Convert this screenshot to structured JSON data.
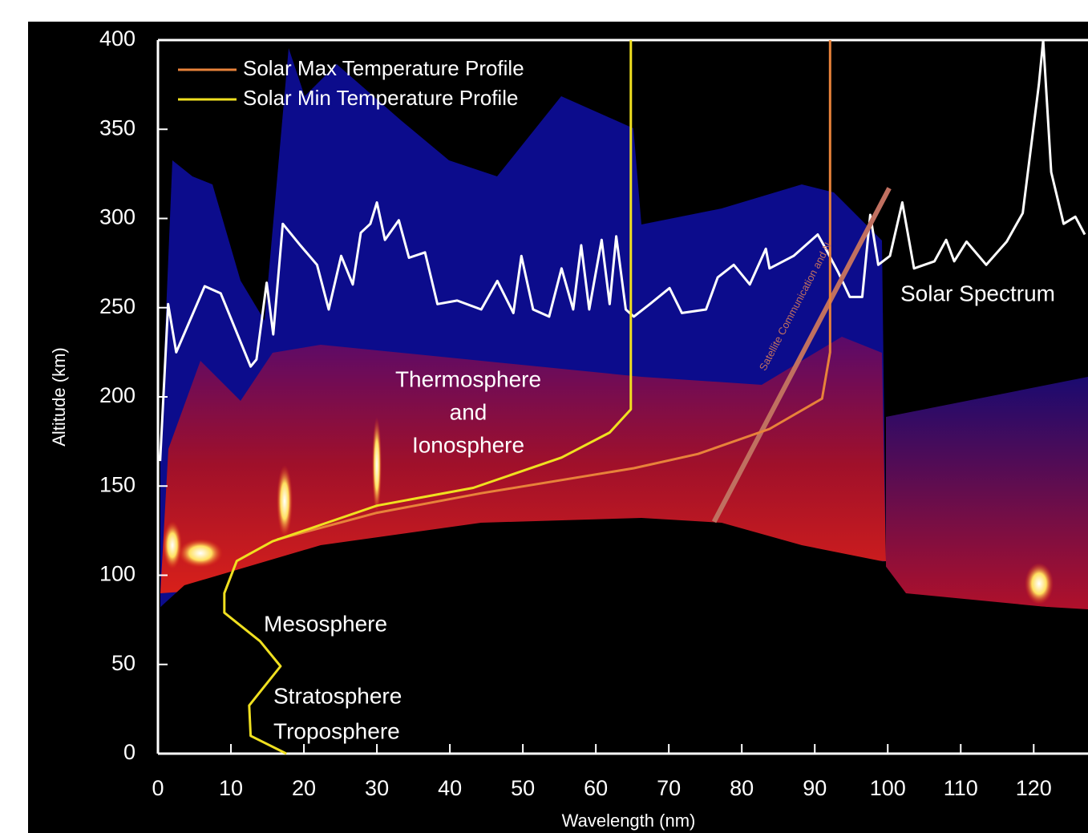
{
  "chart_data": {
    "type": "line",
    "x_label": "Wavelength (nm)",
    "y_label": "Altitude (km)",
    "xlim": [
      0,
      127
    ],
    "ylim": [
      0,
      400
    ],
    "xticks": [
      0,
      10,
      20,
      30,
      40,
      50,
      60,
      70,
      80,
      90,
      100,
      110,
      120
    ],
    "yticks": [
      0,
      50,
      100,
      150,
      200,
      250,
      300,
      350,
      400
    ],
    "legend": "top-left",
    "series": [
      {
        "name": "Solar Max Temperature Profile",
        "color": "#e8823a",
        "x": [
          16.3,
          30,
          44.3,
          65.2,
          74,
          83.8,
          91,
          92.1,
          92.1
        ],
        "values": [
          120,
          135,
          146,
          160,
          168,
          182,
          199,
          225,
          400
        ]
      },
      {
        "name": "Solar Min Temperature Profile",
        "color": "#f0e020",
        "x": [
          17.6,
          12.7,
          12.5,
          16.8,
          14,
          9.1,
          9.1,
          10.8,
          15.7,
          30,
          43.2,
          55.3,
          61.9,
          64.8,
          64.8,
          64.8
        ],
        "values": [
          0,
          10,
          27,
          49,
          63,
          79,
          90,
          108,
          119,
          139,
          149,
          166,
          180,
          193,
          199,
          400
        ]
      }
    ],
    "spectrum": {
      "label": "Solar Spectrum",
      "color": "#ffffff",
      "x": [
        0.3,
        1.4,
        2.5,
        6.4,
        8.6,
        12.7,
        13.5,
        14.9,
        15.8,
        17.1,
        19.5,
        21.8,
        23.4,
        25.1,
        26.7,
        27.8,
        29.1,
        30,
        31.1,
        33,
        34.4,
        36.6,
        38.3,
        41,
        44.3,
        46.5,
        48.7,
        49.8,
        51.4,
        53.6,
        55.3,
        56.9,
        58,
        59.1,
        60.8,
        61.9,
        62.8,
        64.1,
        65.2,
        67.4,
        70.1,
        71.8,
        75.1,
        76.7,
        78.9,
        81.1,
        83.3,
        83.8,
        87.1,
        90.4,
        91.5,
        93.2,
        94.8,
        96.5,
        97.6,
        98.7,
        100.3,
        102,
        103.6,
        106.4,
        108,
        109.1,
        110.8,
        113.5,
        116.3,
        118.5,
        120.7,
        121.3,
        122.4,
        124.1,
        125.7,
        127
      ],
      "values": [
        164,
        252,
        225,
        262,
        258,
        217,
        221,
        264,
        235,
        297,
        285,
        274,
        249,
        279,
        263,
        292,
        297,
        309,
        288,
        299,
        278,
        281,
        252,
        254,
        249,
        265,
        247,
        279,
        249,
        245,
        272,
        249,
        285,
        249,
        288,
        252,
        290,
        249,
        245,
        252,
        261,
        247,
        249,
        267,
        274,
        263,
        283,
        272,
        279,
        291,
        283,
        270,
        256,
        256,
        302,
        274,
        279,
        309,
        272,
        276,
        288,
        276,
        287,
        274,
        287,
        303,
        375,
        400,
        326,
        297,
        301,
        291
      ]
    },
    "satellite": {
      "label": "Satellite Communication and N",
      "color": "#c07060",
      "x": [
        76.2,
        100.2
      ],
      "values": [
        130,
        317
      ]
    },
    "annotations": {
      "thermosphere": [
        "Thermosphere",
        "and",
        "Ionosphere"
      ],
      "mesosphere": "Mesosphere",
      "stratosphere": "Stratosphere",
      "troposphere": "Troposphere"
    }
  }
}
